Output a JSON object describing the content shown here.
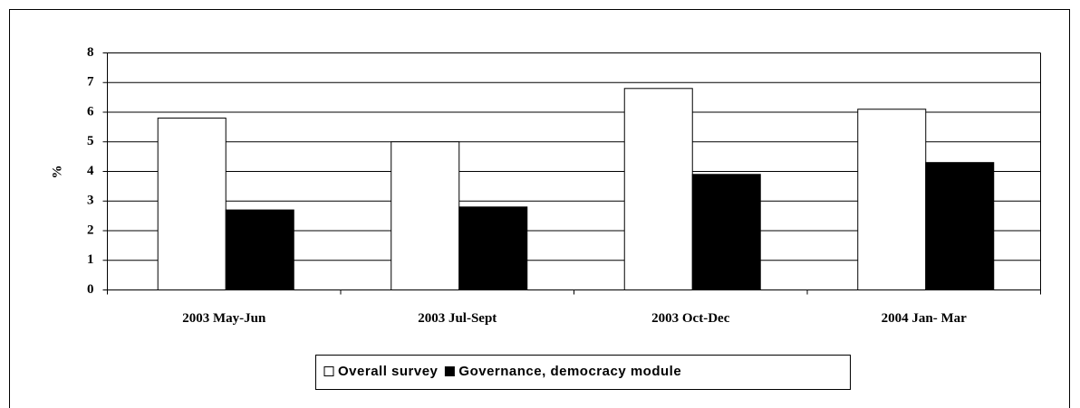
{
  "chart_data": {
    "type": "bar",
    "y_label": "%",
    "categories": [
      "2003 May-Jun",
      "2003 Jul-Sept",
      "2003 Oct-Dec",
      "2004 Jan- Mar"
    ],
    "series": [
      {
        "name": "Overall survey",
        "color": "#ffffff",
        "values": [
          5.8,
          5.0,
          6.8,
          6.1
        ]
      },
      {
        "name": "Governance, democracy module",
        "color": "#000000",
        "values": [
          2.7,
          2.8,
          3.9,
          4.3
        ]
      }
    ],
    "ylim": [
      0,
      8
    ],
    "yticks": [
      0,
      1,
      2,
      3,
      4,
      5,
      6,
      7,
      8
    ],
    "grid": true,
    "legend": "bottom"
  }
}
